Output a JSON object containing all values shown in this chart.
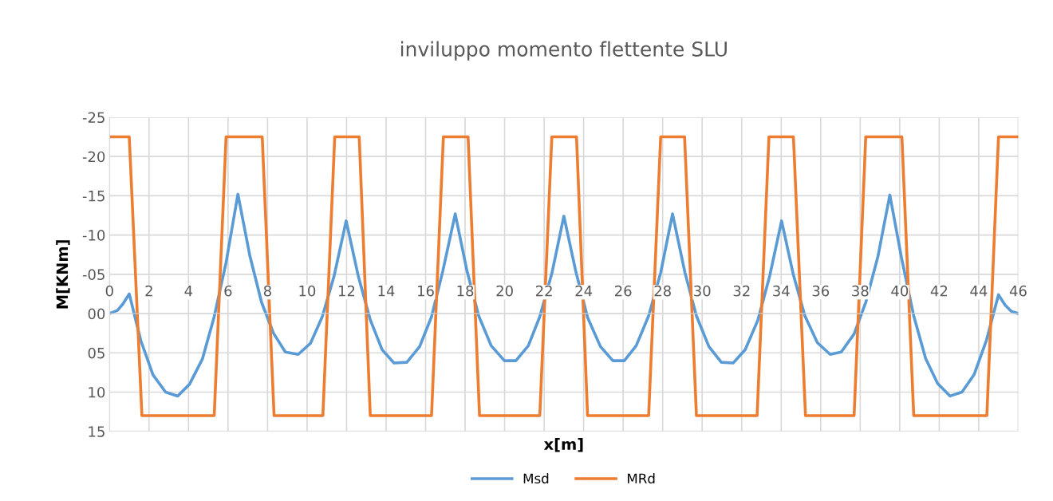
{
  "chart_data": {
    "type": "line",
    "title": "inviluppo momento flettente SLU",
    "xlabel": "x[m]",
    "ylabel": "M[KNm]",
    "xlim": [
      0,
      46
    ],
    "xticks": [
      0,
      2,
      4,
      6,
      8,
      10,
      12,
      14,
      16,
      18,
      20,
      22,
      24,
      26,
      28,
      30,
      32,
      34,
      36,
      38,
      40,
      42,
      44,
      46
    ],
    "ylim": [
      15,
      -25
    ],
    "yticks": [
      -25,
      -20,
      -15,
      -10,
      {
        "value": -5,
        "label": "-05"
      },
      {
        "value": 0,
        "label": "00"
      },
      {
        "value": 5,
        "label": "05"
      },
      10,
      15
    ],
    "grid": true,
    "legend": "bottom",
    "marker": "none",
    "line_style": "solid",
    "series": [
      {
        "name": "Msd",
        "color": "#5b9bd5",
        "x": [
          0,
          0.4,
          0.67,
          1.0,
          1.58,
          2.2,
          2.84,
          3.45,
          4.05,
          4.7,
          5.3,
          5.9,
          6.5,
          7.1,
          7.7,
          8.3,
          8.9,
          9.55,
          10.17,
          10.77,
          11.36,
          11.98,
          12.6,
          13.2,
          13.8,
          14.4,
          15.05,
          15.7,
          16.3,
          16.87,
          17.5,
          18.08,
          18.69,
          19.32,
          19.99,
          20.57,
          21.2,
          21.78,
          22.39,
          23.0,
          23.6,
          24.2,
          24.85,
          25.48,
          26.06,
          26.66,
          27.29,
          27.9,
          28.5,
          29.13,
          29.71,
          30.34,
          30.97,
          31.57,
          32.18,
          32.81,
          33.41,
          34.02,
          34.62,
          35.2,
          35.83,
          36.48,
          37.04,
          37.69,
          38.29,
          38.9,
          39.5,
          40.09,
          40.71,
          41.31,
          41.92,
          42.55,
          43.15,
          43.76,
          44.39,
          45.0,
          45.33,
          45.64,
          46
        ],
        "values": [
          0,
          -0.4,
          -1.2,
          -2.5,
          3.4,
          7.8,
          10.0,
          10.5,
          9.0,
          5.8,
          0.4,
          -6.5,
          -15.2,
          -7.4,
          -1.4,
          2.5,
          4.9,
          5.2,
          3.8,
          0.4,
          -4.7,
          -11.8,
          -4.7,
          0.8,
          4.6,
          6.3,
          6.2,
          4.2,
          0.4,
          -5.4,
          -12.7,
          -5.6,
          0.3,
          4.1,
          6.0,
          6.0,
          4.1,
          0.4,
          -5.1,
          -12.4,
          -5.4,
          0.5,
          4.2,
          6.0,
          6.0,
          4.1,
          0.3,
          -5.2,
          -12.7,
          -5.2,
          0.3,
          4.2,
          6.2,
          6.3,
          4.6,
          0.9,
          -4.7,
          -11.8,
          -4.9,
          0.3,
          3.7,
          5.2,
          4.9,
          2.6,
          -1.5,
          -7.3,
          -15.1,
          -7.1,
          0.3,
          5.7,
          8.9,
          10.5,
          10.0,
          7.8,
          3.4,
          -2.4,
          -1.1,
          -0.3,
          0
        ]
      },
      {
        "name": "MRd",
        "color": "#ed7d31",
        "x": [
          0,
          1.0,
          1.64,
          5.3,
          5.9,
          7.73,
          8.33,
          10.8,
          11.4,
          12.64,
          13.2,
          16.3,
          16.9,
          18.15,
          18.73,
          21.78,
          22.39,
          23.64,
          24.2,
          27.29,
          27.9,
          29.11,
          29.71,
          32.78,
          33.38,
          34.62,
          35.23,
          37.69,
          38.28,
          40.11,
          40.71,
          44.41,
          45.0,
          46
        ],
        "values": [
          -22.5,
          -22.5,
          13,
          13,
          -22.5,
          -22.5,
          13,
          13,
          -22.5,
          -22.5,
          13,
          13,
          -22.5,
          -22.5,
          13,
          13,
          -22.5,
          -22.5,
          13,
          13,
          -22.5,
          -22.5,
          13,
          13,
          -22.5,
          -22.5,
          13,
          13,
          -22.5,
          -22.5,
          13,
          13,
          -22.5,
          -22.5
        ]
      }
    ]
  }
}
